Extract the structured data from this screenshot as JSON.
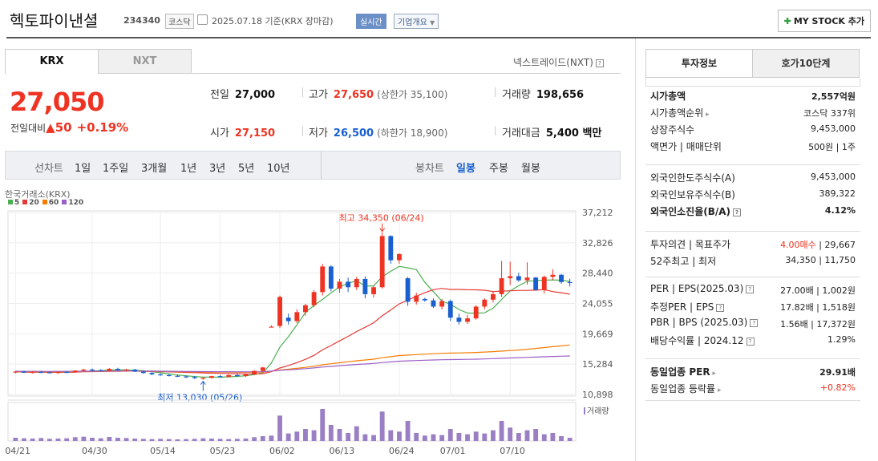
{
  "header": {
    "name": "헥토파이낸셜",
    "code": "234340",
    "market": "코스닥",
    "date": "2025.07.18 기준(KRX 장마감)",
    "realtime": "실시간",
    "corp_info": "기업개요",
    "mystock": "MY STOCK 추가"
  },
  "tabs": {
    "krx": "KRX",
    "nxt": "NXT",
    "nxt_link": "넥스트레이드(NXT)"
  },
  "quote": {
    "price": "27,050",
    "change_label": "전일대비",
    "change": "50",
    "change_pct": "+0.19%",
    "prev_label": "전일",
    "prev": "27,000",
    "high_label": "고가",
    "high": "27,650",
    "upper_limit": "(상한가 35,100)",
    "volume_label": "거래량",
    "volume": "198,656",
    "open_label": "시가",
    "open": "27,150",
    "low_label": "저가",
    "low": "26,500",
    "lower_limit": "(하한가 18,900)",
    "amount_label": "거래대금",
    "amount": "5,400 백만"
  },
  "toolbar": {
    "line_label": "선차트",
    "periods": [
      "1일",
      "1주일",
      "3개월",
      "1년",
      "3년",
      "5년",
      "10년"
    ],
    "candle_label": "봉차트",
    "candles": [
      "일봉",
      "주봉",
      "월봉"
    ],
    "candle_selected": "일봉"
  },
  "chart_data": {
    "type": "candlestick",
    "title": "한국거래소(KRX)",
    "ma_legend": [
      "5",
      "20",
      "60",
      "120"
    ],
    "ma_colors": [
      "#4caf50",
      "#e53935",
      "#f57c00",
      "#9c5fc9"
    ],
    "y_ticks": [
      "37,212",
      "32,826",
      "28,440",
      "24,055",
      "19,669",
      "15,284",
      "10,898"
    ],
    "ylim": [
      10898,
      37212
    ],
    "x_labels": [
      "04/21",
      "04/30",
      "05/14",
      "05/23",
      "06/02",
      "06/13",
      "06/24",
      "07/01",
      "07/10"
    ],
    "annotations": {
      "high": "최고 34,350 (06/24)",
      "low": "최저 13,030 (05/26)"
    },
    "volume_label": "거래량",
    "candles_ohlc": [
      [
        14100,
        14300,
        13950,
        14200
      ],
      [
        14200,
        14350,
        14000,
        14050
      ],
      [
        14050,
        14250,
        13950,
        14150
      ],
      [
        14150,
        14300,
        14000,
        14100
      ],
      [
        14100,
        14250,
        13950,
        14000
      ],
      [
        14000,
        14200,
        13900,
        14150
      ],
      [
        14150,
        14300,
        14000,
        14100
      ],
      [
        14100,
        14400,
        14050,
        14350
      ],
      [
        14350,
        14600,
        14200,
        14500
      ],
      [
        14500,
        14650,
        14300,
        14400
      ],
      [
        14400,
        14550,
        14250,
        14300
      ],
      [
        14300,
        14700,
        14200,
        14600
      ],
      [
        14600,
        14750,
        14350,
        14400
      ],
      [
        14400,
        14600,
        14300,
        14500
      ],
      [
        14500,
        14600,
        14150,
        14200
      ],
      [
        14200,
        14300,
        13900,
        14000
      ],
      [
        14000,
        14100,
        13700,
        13800
      ],
      [
        13800,
        13950,
        13600,
        13700
      ],
      [
        13700,
        13850,
        13500,
        13600
      ],
      [
        13600,
        13750,
        13400,
        13500
      ],
      [
        13500,
        13650,
        13300,
        13400
      ],
      [
        13400,
        13550,
        13150,
        13250
      ],
      [
        13250,
        13400,
        13030,
        13300
      ],
      [
        13300,
        13600,
        13200,
        13550
      ],
      [
        13550,
        13700,
        13350,
        13450
      ],
      [
        13450,
        13800,
        13350,
        13700
      ],
      [
        13700,
        13850,
        13450,
        13550
      ],
      [
        13550,
        13900,
        13450,
        13800
      ],
      [
        13800,
        14400,
        13700,
        14300
      ],
      [
        14300,
        14900,
        14200,
        14800
      ],
      [
        20700,
        20900,
        20600,
        20700
      ],
      [
        20800,
        25200,
        20500,
        25000
      ],
      [
        22000,
        22600,
        21000,
        21500
      ],
      [
        21500,
        23200,
        21200,
        22800
      ],
      [
        22800,
        24000,
        22300,
        23800
      ],
      [
        23800,
        26000,
        23500,
        25700
      ],
      [
        25700,
        29800,
        25200,
        29400
      ],
      [
        29400,
        29600,
        25800,
        26200
      ],
      [
        26200,
        27600,
        25600,
        27200
      ],
      [
        27200,
        27800,
        25700,
        26400
      ],
      [
        26400,
        27900,
        26000,
        27600
      ],
      [
        27600,
        28000,
        24800,
        25400
      ],
      [
        25400,
        26600,
        24900,
        26400
      ],
      [
        26400,
        34350,
        26200,
        33800
      ],
      [
        33800,
        33900,
        29800,
        30300
      ],
      [
        30300,
        31300,
        29800,
        31200
      ],
      [
        27700,
        27900,
        23700,
        24300
      ],
      [
        24300,
        25600,
        23900,
        25200
      ],
      [
        24700,
        24900,
        24300,
        24500
      ],
      [
        24500,
        24800,
        23400,
        23600
      ],
      [
        23600,
        24700,
        23200,
        24400
      ],
      [
        24400,
        24600,
        21500,
        22000
      ],
      [
        22000,
        22600,
        21000,
        21400
      ],
      [
        21400,
        22400,
        21100,
        21900
      ],
      [
        21900,
        23800,
        21700,
        23600
      ],
      [
        23600,
        24800,
        23200,
        24600
      ],
      [
        24600,
        25800,
        24200,
        25400
      ],
      [
        25400,
        30200,
        25000,
        27700
      ],
      [
        27700,
        30100,
        26700,
        28000
      ],
      [
        28000,
        28500,
        27200,
        27400
      ],
      [
        27400,
        30000,
        26800,
        27800
      ],
      [
        27800,
        27900,
        25900,
        26000
      ],
      [
        26000,
        28100,
        25500,
        27900
      ],
      [
        27900,
        29000,
        27400,
        28200
      ],
      [
        28200,
        28300,
        26900,
        27150
      ],
      [
        27150,
        27650,
        26500,
        27050
      ]
    ],
    "volumes": [
      12,
      10,
      9,
      11,
      8,
      9,
      10,
      14,
      16,
      12,
      10,
      15,
      12,
      11,
      9,
      8,
      7,
      8,
      7,
      6,
      7,
      8,
      10,
      9,
      8,
      7,
      8,
      9,
      14,
      18,
      20,
      95,
      28,
      35,
      45,
      40,
      120,
      60,
      45,
      30,
      55,
      25,
      22,
      110,
      40,
      35,
      75,
      30,
      20,
      25,
      22,
      45,
      30,
      25,
      35,
      28,
      40,
      75,
      50,
      30,
      40,
      45,
      25,
      30,
      18,
      12
    ]
  },
  "info": {
    "tab_info": "투자정보",
    "tab_hoga": "호가10단계",
    "rows1": [
      {
        "k": "시가총액",
        "v": "2,557억원"
      },
      {
        "k": "시가총액순위",
        "v": "코스닥 337위"
      },
      {
        "k": "상장주식수",
        "v": "9,453,000"
      },
      {
        "k": "액면가 | 매매단위",
        "v": "500원 | 1주"
      }
    ],
    "rows2": [
      {
        "k": "외국인한도주식수(A)",
        "v": "9,453,000"
      },
      {
        "k": "외국인보유주식수(B)",
        "v": "389,322"
      },
      {
        "k": "외국인소진율(B/A)",
        "v": "4.12%"
      }
    ],
    "opinion_label": "투자의견 | 목표주가",
    "opinion_red": "4.00매수",
    "opinion_rest": " | 29,667",
    "week52_label": "52주최고 | 최저",
    "week52": "34,350 | 11,750",
    "rows4": [
      {
        "k": "PER | EPS(2025.03)",
        "v": "27.00배 | 1,002원"
      },
      {
        "k": "추정PER | EPS",
        "v": "17.82배 | 1,518원"
      },
      {
        "k": "PBR | BPS (2025.03)",
        "v": "1.56배 | 17,372원"
      },
      {
        "k": "배당수익률 | 2024.12",
        "v": "1.29%"
      }
    ],
    "same_per_label": "동일업종 PER",
    "same_per": "29.91배",
    "same_chg_label": "동일업종 등락률",
    "same_chg": "+0.82%"
  }
}
